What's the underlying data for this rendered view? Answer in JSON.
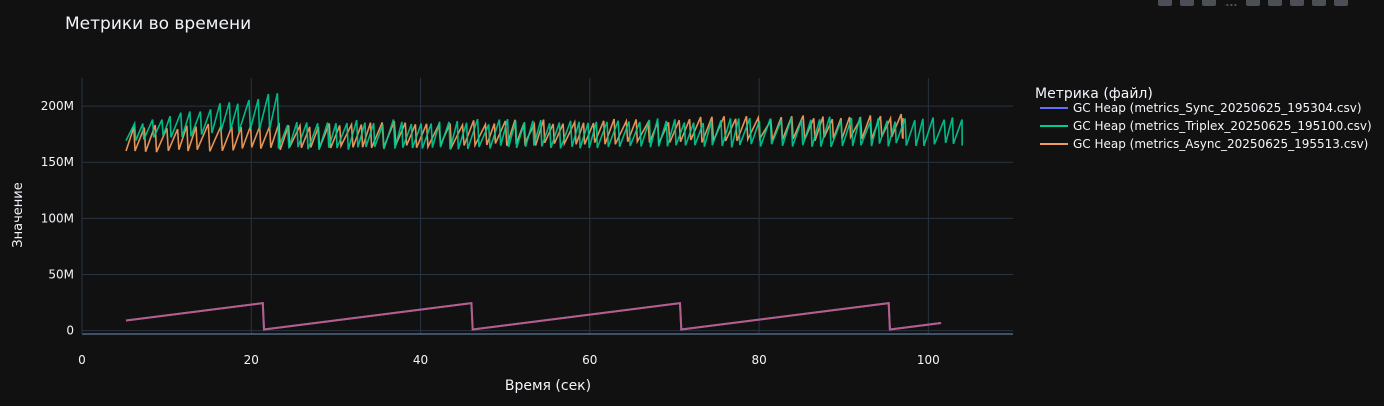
{
  "chart_data": {
    "type": "line",
    "title": "Метрики во времени",
    "xlabel": "Время (сек)",
    "ylabel": "Значение",
    "xlim": [
      0,
      110
    ],
    "ylim": [
      -3000000,
      225000000
    ],
    "xticks": [
      0,
      20,
      40,
      60,
      80,
      100
    ],
    "xtick_labels": [
      "0",
      "20",
      "40",
      "60",
      "80",
      "100"
    ],
    "yticks": [
      0,
      50000000,
      100000000,
      150000000,
      200000000
    ],
    "ytick_labels": [
      "0",
      "50M",
      "100M",
      "150M",
      "200M"
    ],
    "grid": true,
    "legend_title": "Метрика (файл)",
    "legend_position": "right",
    "series": [
      {
        "name": "GC Heap (metrics_Sync_20250625_195304.csv)",
        "color": "#636efa",
        "generator": "sawtooth",
        "x_start": 5.2,
        "x_end": 101.5,
        "period": 24.5,
        "low": 1000000,
        "high": 24500000,
        "start_value": 9000000
      },
      {
        "name": "GC Heap (metrics_Triplex_20250625_195100.csv)",
        "color": "#00cc96",
        "generator": "sawtooth",
        "segments": [
          {
            "x_start": 5.2,
            "x_end": 23.2,
            "period": 1.15,
            "low_from": 170000000,
            "low_to": 182000000,
            "high_from": 185000000,
            "high_to": 212000000
          },
          {
            "x_start": 23.2,
            "x_end": 104.0,
            "period": 1.15,
            "low_from": 162000000,
            "low_to": 166000000,
            "high_from": 185000000,
            "high_to": 189000000
          }
        ]
      },
      {
        "name": "GC Heap (metrics_Async_20250625_195513.csv)",
        "color": "#ef9b5c",
        "generator": "sawtooth",
        "segments": [
          {
            "x_start": 5.2,
            "x_end": 97.0,
            "period": 1.25,
            "low_from": 160000000,
            "low_to": 172000000,
            "high_from": 181000000,
            "high_to": 191000000
          }
        ]
      }
    ],
    "overlap_color": "#c45a73"
  }
}
